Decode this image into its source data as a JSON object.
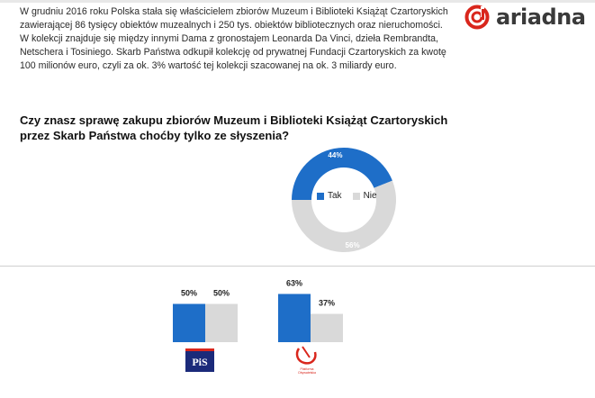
{
  "header": {
    "brand": "ariadna",
    "intro_text": "W grudniu 2016 roku Polska stała się właścicielem zbiorów Muzeum i Biblioteki Książąt Czartoryskich zawierającej 86 tysięcy obiektów muzealnych i 250 tys. obiektów bibliotecznych oraz nieruchomości. W kolekcji znajduje się między innymi Dama z gronostajem Leonarda Da Vinci, dzieła Rembrandta, Netschera i Tosiniego. Skarb Państwa odkupił kolekcję od prywatnej Fundacji Czartoryskich za kwotę 100 milionów euro, czyli za ok. 3% wartość tej kolekcji szacowanej na ok. 3 miliardy euro.",
    "question": "Czy znasz sprawę zakupu zbiorów Muzeum i Biblioteki Książąt Czartoryskich przez Skarb Państwa choćby tylko ze słyszenia?"
  },
  "colors": {
    "tak": "#1e6ec8",
    "nie": "#d9d9d9",
    "brand": "#d9261c"
  },
  "chart_data": [
    {
      "type": "pie",
      "title": "",
      "categories": [
        "Tak",
        "Nie"
      ],
      "values": [
        44,
        56
      ],
      "labels": [
        "44%",
        "56%"
      ],
      "legend": "center"
    },
    {
      "type": "bar",
      "categories": [
        "Tak",
        "Nie"
      ],
      "series_group": "PiS",
      "values": [
        50,
        50
      ],
      "labels": [
        "50%",
        "50%"
      ],
      "logo_text": "PiS"
    },
    {
      "type": "bar",
      "categories": [
        "Tak",
        "Nie"
      ],
      "series_group": "Platforma Obywatelska",
      "values": [
        63,
        37
      ],
      "labels": [
        "63%",
        "37%"
      ],
      "logo_text": "Platforma Obywatelska"
    }
  ]
}
